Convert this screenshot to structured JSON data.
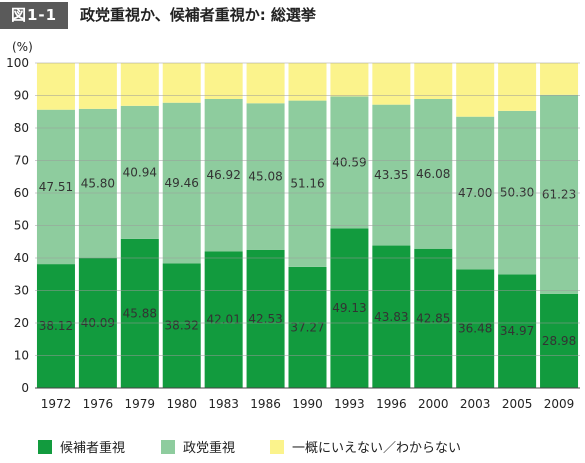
{
  "header": {
    "figure_label": "図1-1",
    "title": "政党重視か、候補者重視か: 総選挙"
  },
  "chart_data": {
    "type": "bar",
    "stacked": true,
    "unit_label": "(%)",
    "categories": [
      "1972",
      "1976",
      "1979",
      "1980",
      "1983",
      "1986",
      "1990",
      "1993",
      "1996",
      "2000",
      "2003",
      "2005",
      "2009"
    ],
    "ylim": [
      0,
      100
    ],
    "yticks": [
      0,
      10,
      20,
      30,
      40,
      50,
      60,
      70,
      80,
      90,
      100
    ],
    "grid": true,
    "legend_position": "bottom",
    "series": [
      {
        "name": "候補者重視",
        "color": "#129b3e",
        "values": [
          38.12,
          40.09,
          45.88,
          38.32,
          42.01,
          42.53,
          37.27,
          49.13,
          43.83,
          42.85,
          36.48,
          34.97,
          28.98
        ],
        "labels": [
          "38.12",
          "40.09",
          "45.88",
          "38.32",
          "42.01",
          "42.53",
          "37.27",
          "49.13",
          "43.83",
          "42.85",
          "36.48",
          "34.97",
          "28.98"
        ]
      },
      {
        "name": "政党重視",
        "color": "#8ecc9e",
        "values": [
          47.51,
          45.8,
          40.94,
          49.46,
          46.92,
          45.08,
          51.16,
          40.59,
          43.35,
          46.08,
          47.0,
          50.3,
          61.23
        ],
        "labels": [
          "47.51",
          "45.80",
          "40.94",
          "49.46",
          "46.92",
          "45.08",
          "51.16",
          "40.59",
          "43.35",
          "46.08",
          "47.00",
          "50.30",
          "61.23"
        ]
      },
      {
        "name": "一概にいえない／わからない",
        "color": "#fbf38c",
        "values": [
          14.37,
          14.11,
          13.18,
          12.22,
          11.07,
          12.39,
          11.57,
          10.28,
          12.82,
          11.07,
          16.52,
          14.73,
          9.79
        ]
      }
    ]
  }
}
